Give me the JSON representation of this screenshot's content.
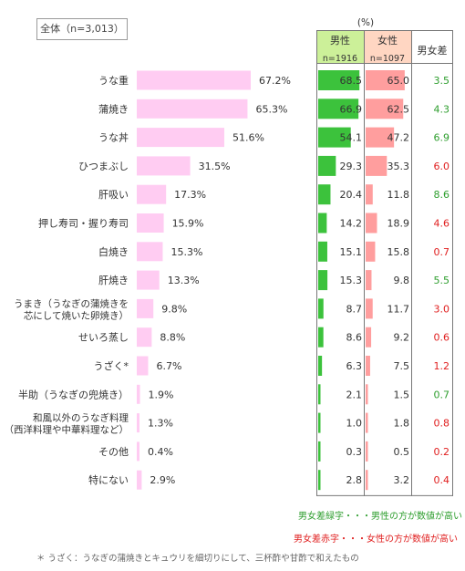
{
  "total_label": "全体（n=3,013）",
  "percent_unit": "(%)",
  "headers": {
    "male": "男性",
    "male_n": "n=1916",
    "female": "女性",
    "female_n": "n=1097",
    "diff": "男女差"
  },
  "colors": {
    "total_bar": "#ffccf2",
    "male_bar": "#3cc23c",
    "female_bar": "#ff9e9e",
    "male_header": "#ccf099",
    "female_header": "#ffd6c2",
    "diff_green": "#2e9e2e",
    "diff_red": "#e02020"
  },
  "chart_data": {
    "type": "bar",
    "categories": [
      "うな重",
      "蒲焼き",
      "うな丼",
      "ひつまぶし",
      "肝吸い",
      "押し寿司・握り寿司",
      "白焼き",
      "肝焼き",
      "うまき（うなぎの蒲焼きを\n芯にして焼いた卵焼き）",
      "せいろ蒸し",
      "うざく*",
      "半助（うなぎの兜焼き）",
      "和風以外のうなぎ料理\n（西洋料理や中華料理など）",
      "その他",
      "特にない"
    ],
    "values": [
      67.2,
      65.3,
      51.6,
      31.5,
      17.3,
      15.9,
      15.3,
      13.3,
      9.8,
      8.8,
      6.7,
      1.9,
      1.3,
      0.4,
      2.9
    ],
    "value_labels": [
      "67.2%",
      "65.3%",
      "51.6%",
      "31.5%",
      "17.3%",
      "15.9%",
      "15.3%",
      "13.3%",
      "9.8%",
      "8.8%",
      "6.7%",
      "1.9%",
      "1.3%",
      "0.4%",
      "2.9%"
    ],
    "male": [
      68.5,
      66.9,
      54.1,
      29.3,
      20.4,
      14.2,
      15.1,
      15.3,
      8.7,
      8.6,
      6.3,
      2.1,
      1.0,
      0.3,
      2.8
    ],
    "male_labels": [
      "68.5",
      "66.9",
      "54.1",
      "29.3",
      "20.4",
      "14.2",
      "15.1",
      "15.3",
      "8.7",
      "8.6",
      "6.3",
      "2.1",
      "1.0",
      "0.3",
      "2.8"
    ],
    "female": [
      65.0,
      62.5,
      47.2,
      35.3,
      11.8,
      18.9,
      15.8,
      9.8,
      11.7,
      9.2,
      7.5,
      1.5,
      1.8,
      0.5,
      3.2
    ],
    "female_labels": [
      "65.0",
      "62.5",
      "47.2",
      "35.3",
      "11.8",
      "18.9",
      "15.8",
      "9.8",
      "11.7",
      "9.2",
      "7.5",
      "1.5",
      "1.8",
      "0.5",
      "3.2"
    ],
    "diff_labels": [
      "3.5",
      "4.3",
      "6.9",
      "6.0",
      "8.6",
      "4.6",
      "0.7",
      "5.5",
      "3.0",
      "0.6",
      "1.2",
      "0.7",
      "0.8",
      "0.2",
      "0.4"
    ],
    "diff_sign": [
      "male",
      "male",
      "male",
      "female",
      "male",
      "female",
      "female",
      "male",
      "female",
      "female",
      "female",
      "male",
      "female",
      "female",
      "female"
    ]
  },
  "notes": {
    "green_note": "男女差緑字・・・男性の方が数値が高い",
    "red_note": "男女差赤字・・・女性の方が数値が高い",
    "footnote": "＊ うざく：うなぎの蒲焼きとキュウリを細切りにして、三杯酢や甘酢で和えたもの"
  }
}
